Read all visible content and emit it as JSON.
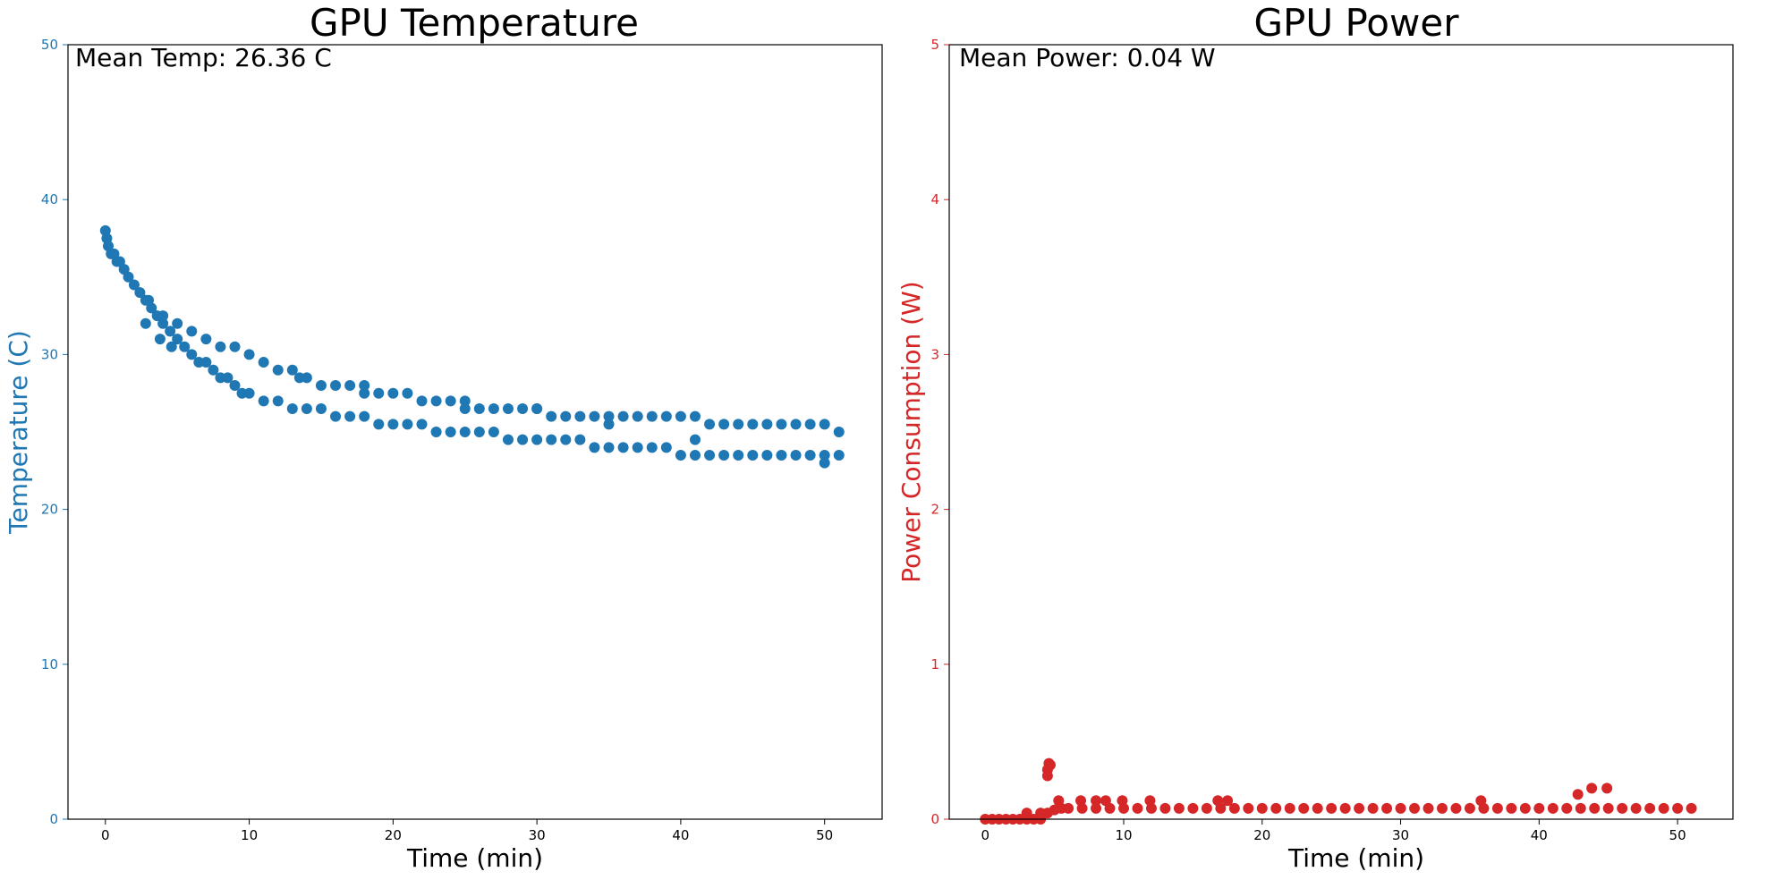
{
  "chart_data": [
    {
      "type": "scatter",
      "title": "GPU Temperature",
      "xlabel": "Time (min)",
      "ylabel": "Temperature (C)",
      "annotation": "Mean Temp: 26.36 C",
      "xlim": [
        -2.6,
        54
      ],
      "ylim": [
        0,
        50
      ],
      "xticks": [
        0,
        10,
        20,
        30,
        40,
        50
      ],
      "xtick_labels": [
        "0",
        "10",
        "20",
        "30",
        "40",
        "50"
      ],
      "yticks": [
        0,
        10,
        20,
        30,
        40,
        50
      ],
      "ytick_labels": [
        "0",
        "10",
        "20",
        "30",
        "40",
        "50"
      ],
      "grid": false,
      "color": "#1f77b4",
      "series": [
        {
          "x": [
            0,
            0.1,
            0.2,
            0.4,
            0.6,
            0.8,
            1,
            1.3,
            1.6,
            2,
            2.4,
            2.8,
            3.2,
            3.6,
            4,
            4.5,
            5,
            5.5,
            6,
            6.5,
            7,
            7.5,
            8,
            8.5,
            9,
            9.5,
            10,
            11,
            12,
            13,
            14,
            15,
            16,
            17,
            18,
            19,
            20,
            21,
            22,
            23,
            24,
            25,
            26,
            27,
            28,
            29,
            30,
            31,
            32,
            33,
            34,
            35,
            36,
            37,
            38,
            39,
            40,
            41,
            42,
            43,
            44,
            45,
            46,
            47,
            48,
            49,
            50,
            51
          ],
          "y": [
            38,
            37.5,
            37,
            36.5,
            36.5,
            36,
            36,
            35.5,
            35,
            34.5,
            34,
            33.5,
            33,
            32.5,
            32,
            31.5,
            31,
            30.5,
            30,
            29.5,
            29.5,
            29,
            28.5,
            28.5,
            28,
            27.5,
            27.5,
            27,
            27,
            26.5,
            26.5,
            26.5,
            26,
            26,
            26,
            25.5,
            25.5,
            25.5,
            25.5,
            25,
            25,
            25,
            25,
            25,
            24.5,
            24.5,
            24.5,
            24.5,
            24.5,
            24.5,
            24,
            24,
            24,
            24,
            24,
            24,
            23.5,
            23.5,
            23.5,
            23.5,
            23.5,
            23.5,
            23.5,
            23.5,
            23.5,
            23.5,
            23.5,
            23.5
          ]
        },
        {
          "x": [
            3,
            4,
            5,
            6,
            7,
            8,
            9,
            10,
            11,
            12,
            13,
            14,
            15,
            16,
            17,
            18,
            19,
            20,
            21,
            22,
            23,
            24,
            25,
            26,
            27,
            28,
            29,
            30,
            31,
            32,
            33,
            34,
            35,
            36,
            37,
            38,
            39,
            40,
            41,
            42,
            43,
            44,
            45,
            46,
            47,
            48,
            49,
            50,
            51
          ],
          "y": [
            33.5,
            32.5,
            32,
            31.5,
            31,
            30.5,
            30.5,
            30,
            29.5,
            29,
            29,
            28.5,
            28,
            28,
            28,
            27.5,
            27.5,
            27.5,
            27.5,
            27,
            27,
            27,
            26.5,
            26.5,
            26.5,
            26.5,
            26.5,
            26.5,
            26,
            26,
            26,
            26,
            26,
            26,
            26,
            26,
            26,
            26,
            26,
            25.5,
            25.5,
            25.5,
            25.5,
            25.5,
            25.5,
            25.5,
            25.5,
            25.5,
            25
          ]
        },
        {
          "x": [
            2.8,
            3.8,
            4.6,
            13.5,
            18,
            25,
            30,
            35,
            41,
            50
          ],
          "y": [
            32,
            31,
            30.5,
            28.5,
            28,
            27,
            26.5,
            25.5,
            24.5,
            23
          ]
        }
      ]
    },
    {
      "type": "scatter",
      "title": "GPU Power",
      "xlabel": "Time (min)",
      "ylabel": "Power Consumption (W)",
      "annotation": "Mean Power: 0.04 W",
      "xlim": [
        -2.6,
        54
      ],
      "ylim": [
        0,
        5
      ],
      "xticks": [
        0,
        10,
        20,
        30,
        40,
        50
      ],
      "xtick_labels": [
        "0",
        "10",
        "20",
        "30",
        "40",
        "50"
      ],
      "yticks": [
        0,
        1,
        2,
        3,
        4,
        5
      ],
      "ytick_labels": [
        "0",
        "1",
        "2",
        "3",
        "4",
        "5"
      ],
      "grid": false,
      "color": "#d62728",
      "series": [
        {
          "x": [
            0,
            0.5,
            1,
            1.5,
            2,
            2.5,
            3,
            3.5,
            4,
            4.5,
            5,
            5.5,
            6,
            7,
            8,
            9,
            10,
            11,
            12,
            13,
            14,
            15,
            16,
            17,
            18,
            19,
            20,
            21,
            22,
            23,
            24,
            25,
            26,
            27,
            28,
            29,
            30,
            31,
            32,
            33,
            34,
            35,
            36,
            37,
            38,
            39,
            40,
            41,
            42,
            43,
            44,
            45,
            46,
            47,
            48,
            49,
            50,
            51
          ],
          "y": [
            0,
            0,
            0,
            0,
            0,
            0,
            0,
            0,
            0,
            0.04,
            0.06,
            0.07,
            0.07,
            0.07,
            0.07,
            0.07,
            0.07,
            0.07,
            0.07,
            0.07,
            0.07,
            0.07,
            0.07,
            0.07,
            0.07,
            0.07,
            0.07,
            0.07,
            0.07,
            0.07,
            0.07,
            0.07,
            0.07,
            0.07,
            0.07,
            0.07,
            0.07,
            0.07,
            0.07,
            0.07,
            0.07,
            0.07,
            0.07,
            0.07,
            0.07,
            0.07,
            0.07,
            0.07,
            0.07,
            0.07,
            0.07,
            0.07,
            0.07,
            0.07,
            0.07,
            0.07,
            0.07,
            0.07
          ]
        },
        {
          "x": [
            3,
            4,
            4.5,
            4.5,
            4.6,
            4.7,
            5.3,
            6.9,
            8,
            8.7,
            9.9,
            11.9,
            16.8,
            17.5,
            35.8,
            42.8,
            43.8,
            44.9
          ],
          "y": [
            0.04,
            0.04,
            0.28,
            0.32,
            0.36,
            0.35,
            0.12,
            0.12,
            0.12,
            0.12,
            0.12,
            0.12,
            0.12,
            0.12,
            0.12,
            0.16,
            0.2,
            0.2
          ]
        }
      ]
    }
  ]
}
